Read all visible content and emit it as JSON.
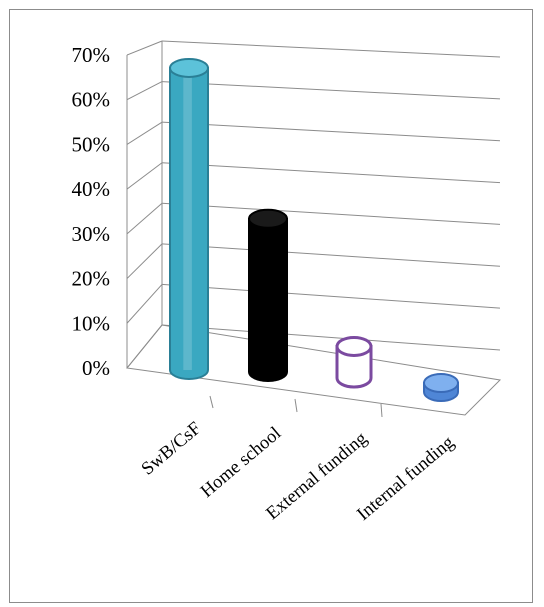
{
  "chart_data": {
    "type": "bar",
    "style": "3d-cylinder",
    "categories": [
      "SwB/CsF",
      "Home school",
      "External funding",
      "Internal funding"
    ],
    "values": [
      0.67,
      0.34,
      0.07,
      0.02
    ],
    "colors": {
      "SwB/CsF": {
        "fill": "#3aa8c1",
        "edge": "#2a7f96",
        "cap": "#5cc2d9"
      },
      "Home school": {
        "fill": "#000000",
        "edge": "#000000",
        "cap": "#1a1a1a"
      },
      "External funding": {
        "fill": "#ffffff",
        "edge": "#7b4aa0",
        "cap": "#ffffff"
      },
      "Internal funding": {
        "fill": "#4f86d6",
        "edge": "#3a6bb8",
        "cap": "#7fb0ef"
      }
    },
    "yticks": [
      "0%",
      "10%",
      "20%",
      "30%",
      "40%",
      "50%",
      "60%",
      "70%"
    ],
    "ylim": [
      0,
      0.7
    ],
    "grid": true,
    "title": "",
    "xlabel": "",
    "ylabel": ""
  }
}
